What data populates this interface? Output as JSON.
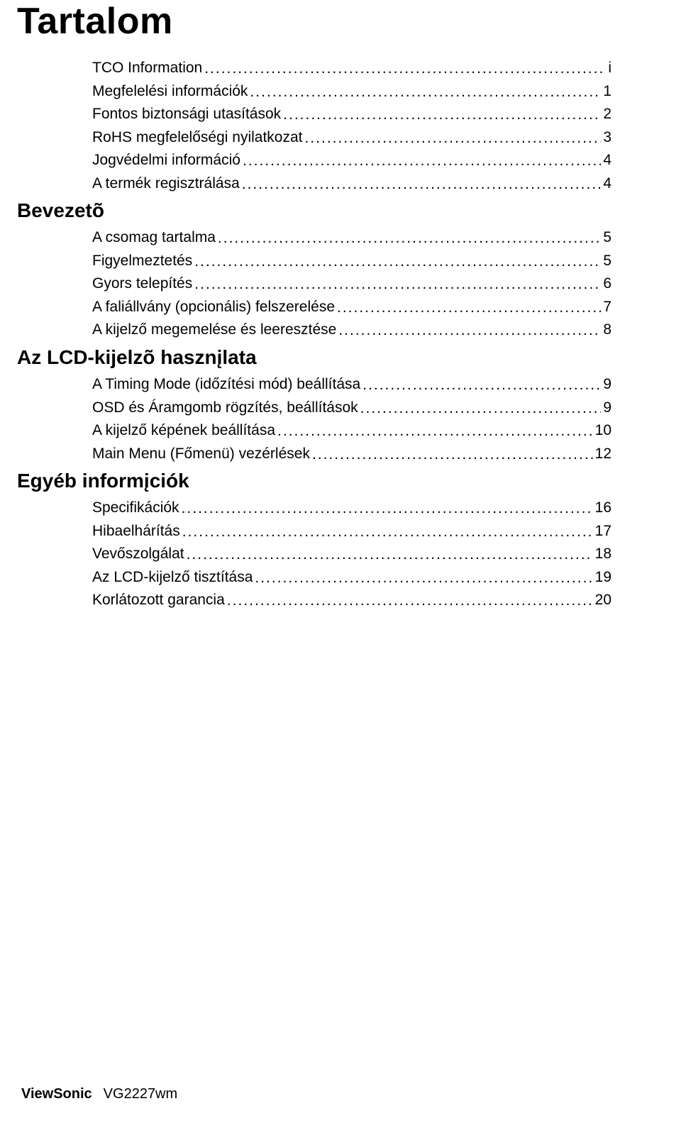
{
  "title": "Tartalom",
  "sections": [
    {
      "items": [
        {
          "label": "TCO Information",
          "page": "i"
        },
        {
          "label": "Megfelelési információk",
          "page": "1"
        },
        {
          "label": "Fontos biztonsági utasítások",
          "page": "2"
        },
        {
          "label": "RoHS megfelelőségi nyilatkozat",
          "page": "3"
        },
        {
          "label": "Jogvédelmi információ",
          "page": "4"
        },
        {
          "label": "A termék regisztrálása",
          "page": "4"
        }
      ]
    },
    {
      "heading": "Bevezetõ",
      "items": [
        {
          "label": "A csomag tartalma",
          "page": "5"
        },
        {
          "label": "Figyelmeztetés",
          "page": "5"
        },
        {
          "label": "Gyors telepítés",
          "page": "6"
        },
        {
          "label": "A faliállvány (opcionális) felszerelése",
          "page": "7"
        },
        {
          "label": "A kijelző megemelése és leeresztése",
          "page": "8"
        }
      ]
    },
    {
      "heading": "Az LCD-kijelzõ hasznįlata",
      "items": [
        {
          "label": "A Timing Mode (időzítési mód) beállítása",
          "page": "9"
        },
        {
          "label": "OSD és Áramgomb rögzítés, beállítások",
          "page": "9"
        },
        {
          "label": "A kijelző képének beállítása",
          "page": "10"
        },
        {
          "label": "Main Menu (Főmenü) vezérlések",
          "page": "12"
        }
      ]
    },
    {
      "heading": "Egyéb informįciók",
      "items": [
        {
          "label": "Specifikációk",
          "page": "16"
        },
        {
          "label": "Hibaelhárítás",
          "page": "17"
        },
        {
          "label": "Vevőszolgálat",
          "page": "18"
        },
        {
          "label": "Az LCD-kijelző tisztítása",
          "page": "19"
        },
        {
          "label": "Korlátozott garancia",
          "page": "20"
        }
      ]
    }
  ],
  "footer": {
    "brand": "ViewSonic",
    "model": "VG2227wm"
  }
}
